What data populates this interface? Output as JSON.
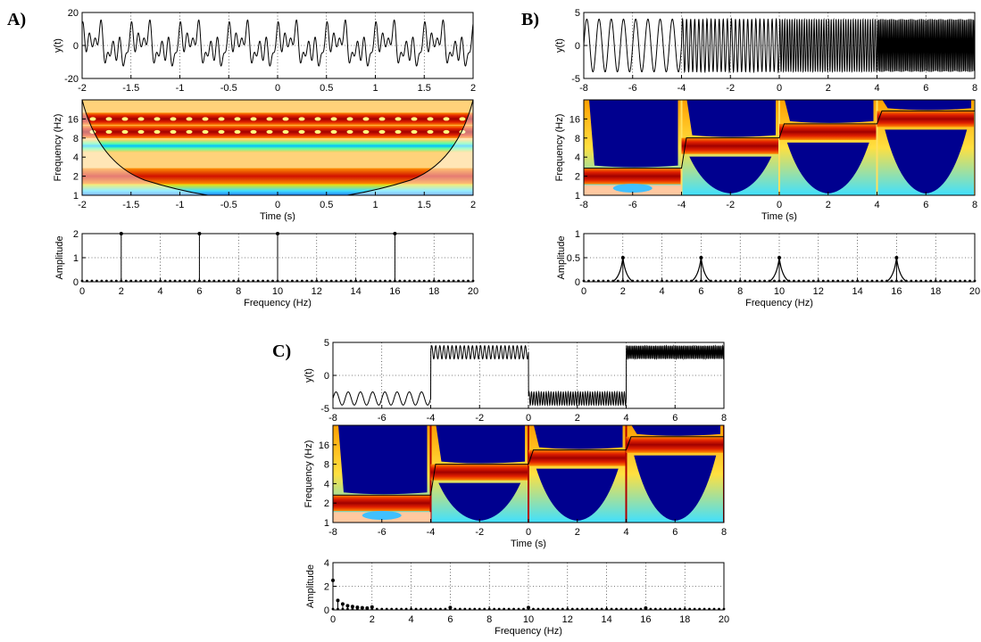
{
  "panels": [
    {
      "letter": "A)",
      "chart_data": [
        {
          "type": "line",
          "ylabel": "y(t)",
          "xlim": [
            -2,
            2
          ],
          "ylim": [
            -20,
            20
          ],
          "xticks": [
            "-2",
            "-1.5",
            "-1",
            "-0.5",
            "0",
            "0.5",
            "1",
            "1.5",
            "2"
          ],
          "yticks": [
            "-20",
            "0",
            "20"
          ],
          "grid": true,
          "signal_components": [
            {
              "freq_hz": 2,
              "amplitude": 2
            },
            {
              "freq_hz": 6,
              "amplitude": 2
            },
            {
              "freq_hz": 10,
              "amplitude": 2
            },
            {
              "freq_hz": 16,
              "amplitude": 2
            }
          ]
        },
        {
          "type": "heatmap",
          "ylabel": "Frequency (Hz)",
          "xlabel": "Time (s)",
          "xlim": [
            -2,
            2
          ],
          "yscale": "log2",
          "xticks": [
            "-2",
            "-1.5",
            "-1",
            "-0.5",
            "0",
            "0.5",
            "1",
            "1.5",
            "2"
          ],
          "yticks": [
            "1",
            "2",
            "4",
            "8",
            "16"
          ],
          "high_power_bands_hz": [
            2,
            6,
            10,
            16
          ]
        },
        {
          "type": "bar",
          "xlabel": "Frequency (Hz)",
          "ylabel": "Amplitude",
          "xlim": [
            0,
            20
          ],
          "ylim": [
            0,
            2
          ],
          "xticks": [
            "0",
            "2",
            "4",
            "6",
            "8",
            "10",
            "12",
            "14",
            "16",
            "18",
            "20"
          ],
          "yticks": [
            "0",
            "1",
            "2"
          ],
          "peaks": [
            {
              "x": 2,
              "y": 2
            },
            {
              "x": 6,
              "y": 2
            },
            {
              "x": 10,
              "y": 2
            },
            {
              "x": 16,
              "y": 2
            }
          ]
        }
      ]
    },
    {
      "letter": "B)",
      "chart_data": [
        {
          "type": "line",
          "ylabel": "y(t)",
          "xlim": [
            -8,
            8
          ],
          "ylim": [
            -5,
            5
          ],
          "xticks": [
            "-8",
            "-6",
            "-4",
            "-2",
            "0",
            "2",
            "4",
            "6",
            "8"
          ],
          "yticks": [
            "-5",
            "0",
            "5"
          ],
          "grid": true,
          "segments": [
            {
              "t": [
                -8,
                -4
              ],
              "freq_hz": 2,
              "amplitude": 4
            },
            {
              "t": [
                -4,
                0
              ],
              "freq_hz": 6,
              "amplitude": 4
            },
            {
              "t": [
                0,
                4
              ],
              "freq_hz": 10,
              "amplitude": 4
            },
            {
              "t": [
                4,
                8
              ],
              "freq_hz": 16,
              "amplitude": 4
            }
          ]
        },
        {
          "type": "heatmap",
          "ylabel": "Frequency (Hz)",
          "xlabel": "Time (s)",
          "xlim": [
            -8,
            8
          ],
          "yscale": "log2",
          "xticks": [
            "-8",
            "-6",
            "-4",
            "-2",
            "0",
            "2",
            "4",
            "6",
            "8"
          ],
          "yticks": [
            "1",
            "2",
            "4",
            "8",
            "16"
          ]
        },
        {
          "type": "line",
          "xlabel": "Frequency (Hz)",
          "ylabel": "Amplitude",
          "xlim": [
            0,
            20
          ],
          "ylim": [
            0,
            1
          ],
          "xticks": [
            "0",
            "2",
            "4",
            "6",
            "8",
            "10",
            "12",
            "14",
            "16",
            "18",
            "20"
          ],
          "yticks": [
            "0",
            "0.5",
            "1"
          ],
          "peaks": [
            {
              "x": 2,
              "y": 0.5
            },
            {
              "x": 6,
              "y": 0.5
            },
            {
              "x": 10,
              "y": 0.5
            },
            {
              "x": 16,
              "y": 0.5
            }
          ]
        }
      ]
    },
    {
      "letter": "C)",
      "chart_data": [
        {
          "type": "line",
          "ylabel": "y(t)",
          "xlim": [
            -8,
            8
          ],
          "ylim": [
            -5,
            5
          ],
          "xticks": [
            "-8",
            "-6",
            "-4",
            "-2",
            "0",
            "2",
            "4",
            "6",
            "8"
          ],
          "yticks": [
            "-5",
            "0",
            "5"
          ],
          "grid": true,
          "segments": [
            {
              "t": [
                -8,
                -4
              ],
              "freq_hz": 2,
              "offset": -3.5,
              "amplitude": 1
            },
            {
              "t": [
                -4,
                0
              ],
              "freq_hz": 6,
              "offset": 3.5,
              "amplitude": 1
            },
            {
              "t": [
                0,
                4
              ],
              "freq_hz": 10,
              "offset": -3.5,
              "amplitude": 1
            },
            {
              "t": [
                4,
                8
              ],
              "freq_hz": 16,
              "offset": 3.5,
              "amplitude": 1
            }
          ]
        },
        {
          "type": "heatmap",
          "ylabel": "Frequency (Hz)",
          "xlabel": "Time (s)",
          "xlim": [
            -8,
            8
          ],
          "yscale": "log2",
          "xticks": [
            "-8",
            "-6",
            "-4",
            "-2",
            "0",
            "2",
            "4",
            "6",
            "8"
          ],
          "yticks": [
            "1",
            "2",
            "4",
            "8",
            "16"
          ]
        },
        {
          "type": "line",
          "xlabel": "Frequency (Hz)",
          "ylabel": "Amplitude",
          "xlim": [
            0,
            20
          ],
          "ylim": [
            0,
            4
          ],
          "xticks": [
            "0",
            "2",
            "4",
            "6",
            "8",
            "10",
            "12",
            "14",
            "16",
            "18",
            "20"
          ],
          "yticks": [
            "0",
            "2",
            "4"
          ],
          "peaks": [
            {
              "x": 0,
              "y": 2.5
            },
            {
              "x": 0.25,
              "y": 0.8
            },
            {
              "x": 0.5,
              "y": 0.5
            },
            {
              "x": 0.75,
              "y": 0.35
            },
            {
              "x": 1,
              "y": 0.28
            },
            {
              "x": 1.25,
              "y": 0.22
            },
            {
              "x": 1.5,
              "y": 0.18
            },
            {
              "x": 1.75,
              "y": 0.15
            },
            {
              "x": 2,
              "y": 0.25
            },
            {
              "x": 6,
              "y": 0.2
            },
            {
              "x": 10,
              "y": 0.2
            },
            {
              "x": 16,
              "y": 0.15
            }
          ]
        }
      ]
    }
  ]
}
